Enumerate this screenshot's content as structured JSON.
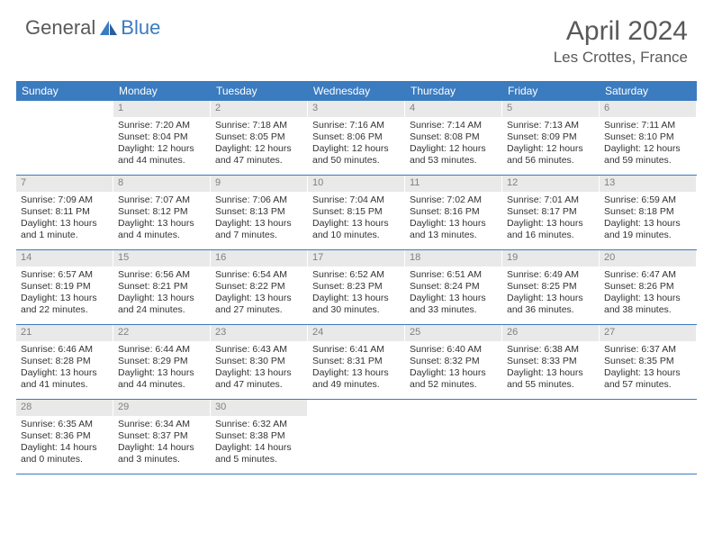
{
  "logo": {
    "part1": "General",
    "part2": "Blue"
  },
  "title": "April 2024",
  "location": "Les Crottes, France",
  "colors": {
    "header_bg": "#3b7bbf",
    "daynum_bg": "#e9e9e9",
    "text": "#333333",
    "muted": "#595959"
  },
  "weekdays": [
    "Sunday",
    "Monday",
    "Tuesday",
    "Wednesday",
    "Thursday",
    "Friday",
    "Saturday"
  ],
  "weeks": [
    [
      {
        "n": "",
        "sr": "",
        "ss": "",
        "dl": ""
      },
      {
        "n": "1",
        "sr": "Sunrise: 7:20 AM",
        "ss": "Sunset: 8:04 PM",
        "dl": "Daylight: 12 hours and 44 minutes."
      },
      {
        "n": "2",
        "sr": "Sunrise: 7:18 AM",
        "ss": "Sunset: 8:05 PM",
        "dl": "Daylight: 12 hours and 47 minutes."
      },
      {
        "n": "3",
        "sr": "Sunrise: 7:16 AM",
        "ss": "Sunset: 8:06 PM",
        "dl": "Daylight: 12 hours and 50 minutes."
      },
      {
        "n": "4",
        "sr": "Sunrise: 7:14 AM",
        "ss": "Sunset: 8:08 PM",
        "dl": "Daylight: 12 hours and 53 minutes."
      },
      {
        "n": "5",
        "sr": "Sunrise: 7:13 AM",
        "ss": "Sunset: 8:09 PM",
        "dl": "Daylight: 12 hours and 56 minutes."
      },
      {
        "n": "6",
        "sr": "Sunrise: 7:11 AM",
        "ss": "Sunset: 8:10 PM",
        "dl": "Daylight: 12 hours and 59 minutes."
      }
    ],
    [
      {
        "n": "7",
        "sr": "Sunrise: 7:09 AM",
        "ss": "Sunset: 8:11 PM",
        "dl": "Daylight: 13 hours and 1 minute."
      },
      {
        "n": "8",
        "sr": "Sunrise: 7:07 AM",
        "ss": "Sunset: 8:12 PM",
        "dl": "Daylight: 13 hours and 4 minutes."
      },
      {
        "n": "9",
        "sr": "Sunrise: 7:06 AM",
        "ss": "Sunset: 8:13 PM",
        "dl": "Daylight: 13 hours and 7 minutes."
      },
      {
        "n": "10",
        "sr": "Sunrise: 7:04 AM",
        "ss": "Sunset: 8:15 PM",
        "dl": "Daylight: 13 hours and 10 minutes."
      },
      {
        "n": "11",
        "sr": "Sunrise: 7:02 AM",
        "ss": "Sunset: 8:16 PM",
        "dl": "Daylight: 13 hours and 13 minutes."
      },
      {
        "n": "12",
        "sr": "Sunrise: 7:01 AM",
        "ss": "Sunset: 8:17 PM",
        "dl": "Daylight: 13 hours and 16 minutes."
      },
      {
        "n": "13",
        "sr": "Sunrise: 6:59 AM",
        "ss": "Sunset: 8:18 PM",
        "dl": "Daylight: 13 hours and 19 minutes."
      }
    ],
    [
      {
        "n": "14",
        "sr": "Sunrise: 6:57 AM",
        "ss": "Sunset: 8:19 PM",
        "dl": "Daylight: 13 hours and 22 minutes."
      },
      {
        "n": "15",
        "sr": "Sunrise: 6:56 AM",
        "ss": "Sunset: 8:21 PM",
        "dl": "Daylight: 13 hours and 24 minutes."
      },
      {
        "n": "16",
        "sr": "Sunrise: 6:54 AM",
        "ss": "Sunset: 8:22 PM",
        "dl": "Daylight: 13 hours and 27 minutes."
      },
      {
        "n": "17",
        "sr": "Sunrise: 6:52 AM",
        "ss": "Sunset: 8:23 PM",
        "dl": "Daylight: 13 hours and 30 minutes."
      },
      {
        "n": "18",
        "sr": "Sunrise: 6:51 AM",
        "ss": "Sunset: 8:24 PM",
        "dl": "Daylight: 13 hours and 33 minutes."
      },
      {
        "n": "19",
        "sr": "Sunrise: 6:49 AM",
        "ss": "Sunset: 8:25 PM",
        "dl": "Daylight: 13 hours and 36 minutes."
      },
      {
        "n": "20",
        "sr": "Sunrise: 6:47 AM",
        "ss": "Sunset: 8:26 PM",
        "dl": "Daylight: 13 hours and 38 minutes."
      }
    ],
    [
      {
        "n": "21",
        "sr": "Sunrise: 6:46 AM",
        "ss": "Sunset: 8:28 PM",
        "dl": "Daylight: 13 hours and 41 minutes."
      },
      {
        "n": "22",
        "sr": "Sunrise: 6:44 AM",
        "ss": "Sunset: 8:29 PM",
        "dl": "Daylight: 13 hours and 44 minutes."
      },
      {
        "n": "23",
        "sr": "Sunrise: 6:43 AM",
        "ss": "Sunset: 8:30 PM",
        "dl": "Daylight: 13 hours and 47 minutes."
      },
      {
        "n": "24",
        "sr": "Sunrise: 6:41 AM",
        "ss": "Sunset: 8:31 PM",
        "dl": "Daylight: 13 hours and 49 minutes."
      },
      {
        "n": "25",
        "sr": "Sunrise: 6:40 AM",
        "ss": "Sunset: 8:32 PM",
        "dl": "Daylight: 13 hours and 52 minutes."
      },
      {
        "n": "26",
        "sr": "Sunrise: 6:38 AM",
        "ss": "Sunset: 8:33 PM",
        "dl": "Daylight: 13 hours and 55 minutes."
      },
      {
        "n": "27",
        "sr": "Sunrise: 6:37 AM",
        "ss": "Sunset: 8:35 PM",
        "dl": "Daylight: 13 hours and 57 minutes."
      }
    ],
    [
      {
        "n": "28",
        "sr": "Sunrise: 6:35 AM",
        "ss": "Sunset: 8:36 PM",
        "dl": "Daylight: 14 hours and 0 minutes."
      },
      {
        "n": "29",
        "sr": "Sunrise: 6:34 AM",
        "ss": "Sunset: 8:37 PM",
        "dl": "Daylight: 14 hours and 3 minutes."
      },
      {
        "n": "30",
        "sr": "Sunrise: 6:32 AM",
        "ss": "Sunset: 8:38 PM",
        "dl": "Daylight: 14 hours and 5 minutes."
      },
      {
        "n": "",
        "sr": "",
        "ss": "",
        "dl": ""
      },
      {
        "n": "",
        "sr": "",
        "ss": "",
        "dl": ""
      },
      {
        "n": "",
        "sr": "",
        "ss": "",
        "dl": ""
      },
      {
        "n": "",
        "sr": "",
        "ss": "",
        "dl": ""
      }
    ]
  ]
}
